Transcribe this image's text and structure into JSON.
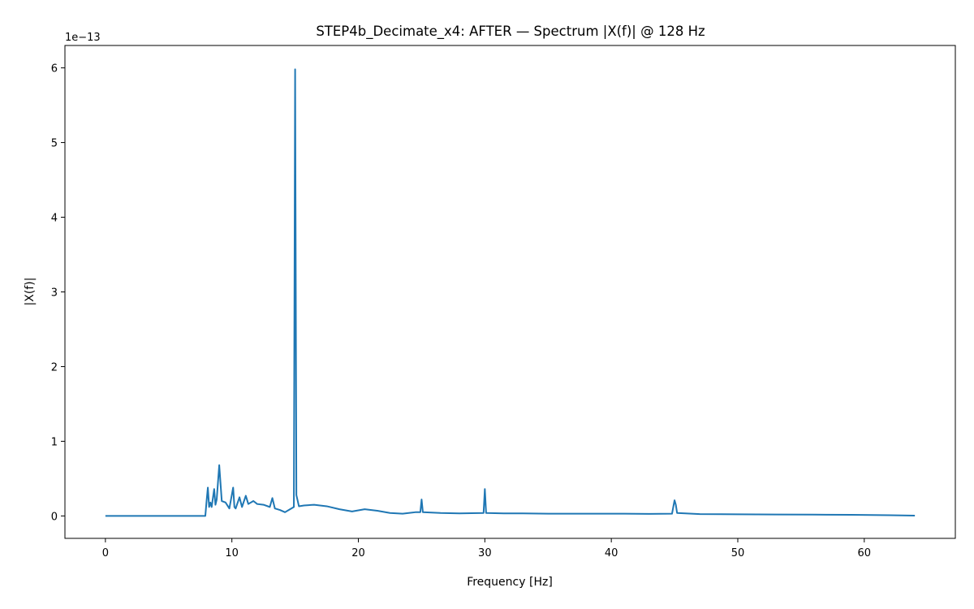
{
  "chart_data": {
    "type": "line",
    "title": "STEP4b_Decimate_x4: AFTER — Spectrum |X(f)| @ 128 Hz",
    "xlabel": "Frequency [Hz]",
    "ylabel": "|X(f)|",
    "y_scale_offset_text": "1e−13",
    "xlim": [
      -3.2,
      67.2
    ],
    "ylim": [
      -0.3,
      6.3
    ],
    "x_ticks": [
      0,
      10,
      20,
      30,
      40,
      50,
      60
    ],
    "y_ticks": [
      0,
      1,
      2,
      3,
      4,
      5,
      6
    ],
    "grid": false,
    "legend": "none",
    "series": [
      {
        "color": "#1f77b4",
        "x": [
          0,
          2,
          4,
          6,
          7.9,
          8.0,
          8.1,
          8.2,
          8.3,
          8.4,
          8.6,
          8.7,
          8.8,
          9.0,
          9.2,
          9.5,
          9.8,
          10.1,
          10.2,
          10.3,
          10.6,
          10.8,
          11.1,
          11.3,
          11.7,
          12.0,
          12.5,
          13.0,
          13.2,
          13.4,
          13.8,
          14.2,
          14.6,
          14.9,
          15.0,
          15.1,
          15.3,
          15.7,
          16.5,
          17.5,
          18.5,
          19.5,
          20.5,
          21.5,
          22.5,
          23.5,
          24.5,
          24.9,
          25.0,
          25.1,
          26.5,
          28.0,
          29.9,
          30.0,
          30.1,
          31.5,
          33.0,
          35.0,
          37.0,
          39.0,
          41.0,
          43.0,
          44.8,
          44.9,
          45.0,
          45.1,
          45.2,
          47.0,
          50.0,
          53.0,
          56.0,
          59.0,
          62.0,
          64.0
        ],
        "values": [
          0,
          0,
          0,
          0,
          0,
          0.2,
          0.38,
          0.12,
          0.18,
          0.12,
          0.36,
          0.15,
          0.22,
          0.68,
          0.2,
          0.18,
          0.1,
          0.38,
          0.12,
          0.1,
          0.25,
          0.12,
          0.27,
          0.16,
          0.2,
          0.16,
          0.15,
          0.12,
          0.24,
          0.1,
          0.08,
          0.05,
          0.09,
          0.12,
          5.98,
          0.28,
          0.13,
          0.14,
          0.15,
          0.13,
          0.09,
          0.06,
          0.09,
          0.07,
          0.04,
          0.03,
          0.05,
          0.05,
          0.22,
          0.05,
          0.04,
          0.035,
          0.04,
          0.36,
          0.04,
          0.035,
          0.035,
          0.03,
          0.03,
          0.03,
          0.03,
          0.028,
          0.03,
          0.12,
          0.21,
          0.15,
          0.04,
          0.025,
          0.022,
          0.02,
          0.018,
          0.015,
          0.01,
          0.005
        ]
      }
    ]
  }
}
